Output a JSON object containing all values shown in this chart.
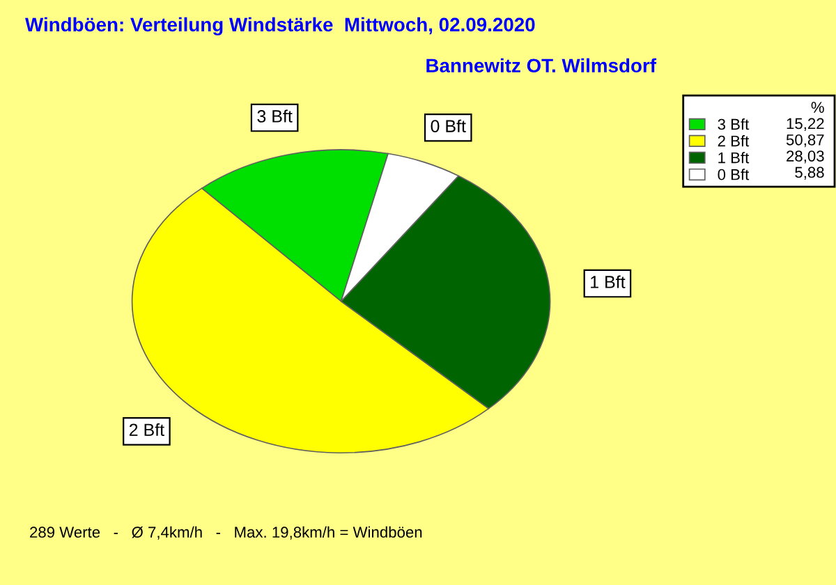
{
  "chart_data": {
    "type": "pie",
    "title": "Windböen: Verteilung Windstärke  Mittwoch, 02.09.2020",
    "subtitle": "Bannewitz OT. Wilmsdorf",
    "legend_title": "%",
    "categories": [
      "3 Bft",
      "2 Bft",
      "1 Bft",
      "0 Bft"
    ],
    "values": [
      15.22,
      50.87,
      28.03,
      5.88
    ],
    "value_labels": [
      "15,22",
      "50,87",
      "28,03",
      "5,88"
    ],
    "colors": [
      "#00e000",
      "#ffff00",
      "#006400",
      "#ffffff"
    ],
    "legend": "top right",
    "annotations": [
      "289 Werte   -   Ø 7,4km/h   -   Max. 19,8km/h = Windböen"
    ]
  }
}
